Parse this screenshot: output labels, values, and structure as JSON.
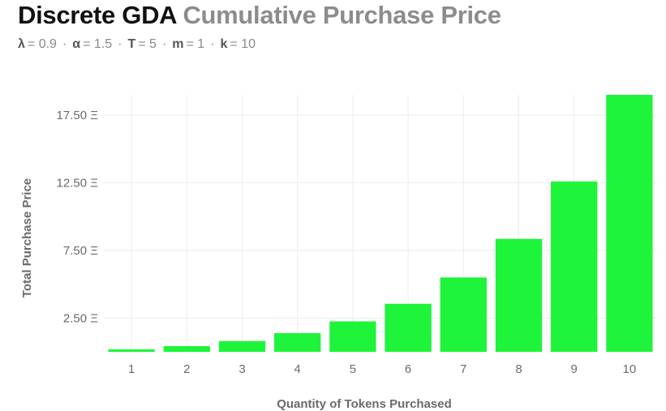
{
  "header": {
    "title_main": "Discrete GDA",
    "title_sub": "Cumulative Purchase Price"
  },
  "params": [
    {
      "symbol": "λ",
      "text": "= 0.9"
    },
    {
      "symbol": "α",
      "text": "= 1.5"
    },
    {
      "symbol": "T",
      "text": "= 5"
    },
    {
      "symbol": "m",
      "text": "= 1"
    },
    {
      "symbol": "k",
      "text": "= 10"
    }
  ],
  "params_separator": "·",
  "colors": {
    "bar": "#1ef43a",
    "grid": "#ececec",
    "title_main": "#111111",
    "title_sub": "#8c8c8c"
  },
  "chart_data": {
    "type": "bar",
    "title": "Discrete GDA Cumulative Purchase Price",
    "xlabel": "Quantity of Tokens Purchased",
    "ylabel": "Total Purchase Price",
    "categories": [
      "1",
      "2",
      "3",
      "4",
      "5",
      "6",
      "7",
      "8",
      "9",
      "10"
    ],
    "values": [
      0.18,
      0.42,
      0.8,
      1.38,
      2.25,
      3.55,
      5.5,
      8.35,
      12.6,
      19.0
    ],
    "y_ticks": [
      2.5,
      7.5,
      12.5,
      17.5
    ],
    "y_tick_labels": [
      "2.50 Ξ",
      "7.50 Ξ",
      "12.50 Ξ",
      "17.50 Ξ"
    ],
    "ylim": [
      0,
      19.0
    ],
    "grid": true,
    "legend": "none"
  }
}
